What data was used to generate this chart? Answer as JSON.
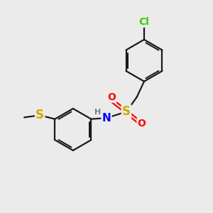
{
  "background_color": "#ebebeb",
  "atom_colors": {
    "C": "#000000",
    "H": "#708090",
    "N": "#0000ff",
    "O": "#ff0000",
    "S": "#ccaa00",
    "S2": "#ccaa00",
    "Cl": "#33cc00"
  },
  "bond_color": "#1a1a1a",
  "bond_width": 1.6,
  "font_size_atoms": 10,
  "xlim": [
    0,
    10
  ],
  "ylim": [
    0,
    10
  ]
}
